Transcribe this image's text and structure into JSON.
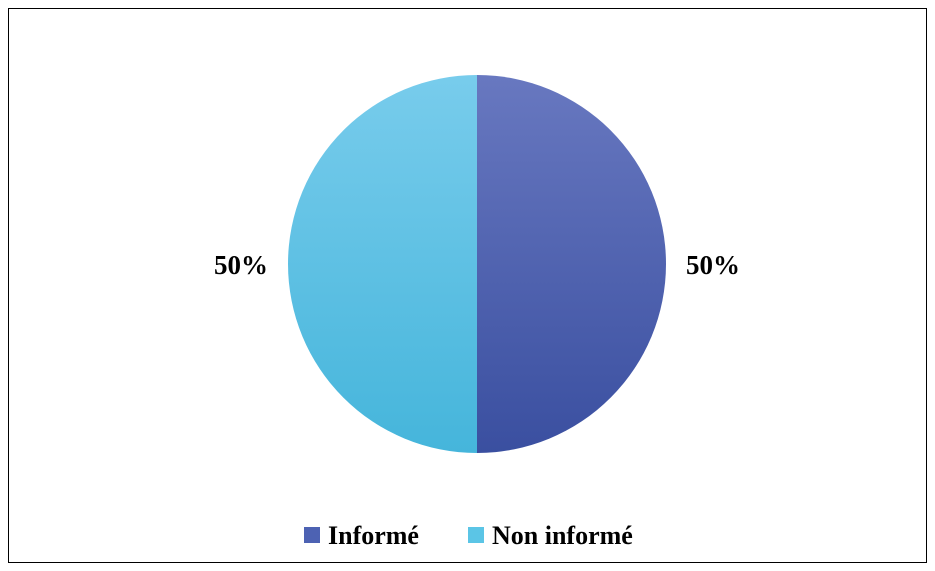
{
  "chart_data": {
    "type": "pie",
    "title": "",
    "slices": [
      {
        "label": "Informé",
        "value": 50,
        "display": "50%",
        "color": "#4d62b3"
      },
      {
        "label": "Non informé",
        "value": 50,
        "display": "50%",
        "color": "#5bc5e6"
      }
    ],
    "legend_position": "bottom"
  }
}
